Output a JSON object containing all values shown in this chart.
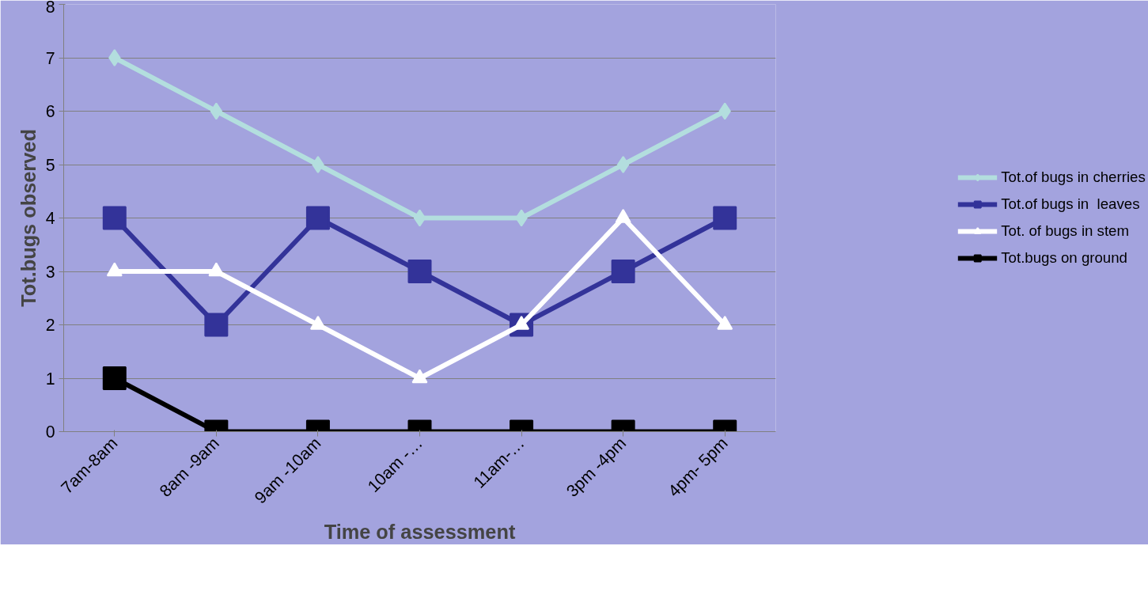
{
  "chart_data": {
    "type": "line",
    "xlabel": "Time of assessment",
    "ylabel": "Tot.bugs observed",
    "categories": [
      "7am-8am",
      "8am -9am",
      "9am -10am",
      "10am -…",
      "11am-…",
      "3pm -4pm",
      "4pm- 5pm"
    ],
    "ylim": [
      0,
      8
    ],
    "yticks": [
      0,
      1,
      2,
      3,
      4,
      5,
      6,
      7,
      8
    ],
    "grid": "y",
    "legend": "right",
    "line_style": "solid",
    "series": [
      {
        "name": "Tot.of bugs in cherries",
        "color": "#b3dede",
        "marker": "diamond",
        "values": [
          7,
          6,
          5,
          4,
          4,
          5,
          6
        ]
      },
      {
        "name": "Tot.of bugs in  leaves",
        "color": "#333399",
        "marker": "square",
        "values": [
          4,
          2,
          4,
          3,
          2,
          3,
          4
        ]
      },
      {
        "name": "Tot. of bugs in stem",
        "color": "#ffffff",
        "marker": "triangle",
        "values": [
          3,
          3,
          2,
          1,
          2,
          4,
          2
        ]
      },
      {
        "name": "Tot.bugs on ground",
        "color": "#000000",
        "marker": "square",
        "values": [
          1,
          0,
          0,
          0,
          0,
          0,
          0
        ]
      }
    ]
  }
}
